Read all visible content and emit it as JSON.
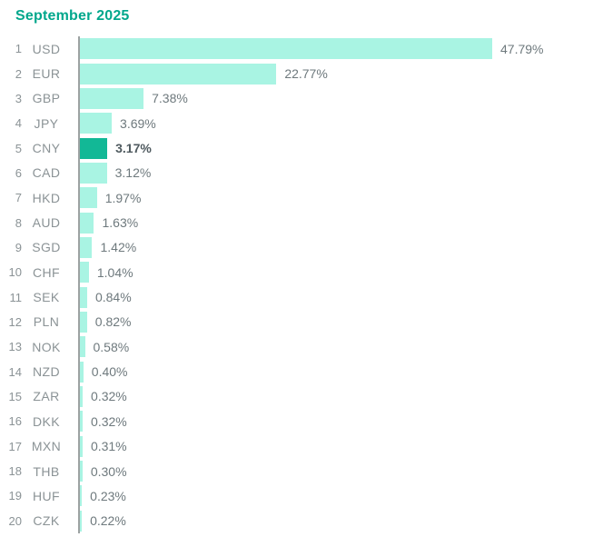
{
  "page": {
    "title": "September 2025"
  },
  "chart_data": {
    "type": "bar",
    "orientation": "horizontal",
    "title": "September 2025",
    "xlabel": "",
    "ylabel": "",
    "unit": "%",
    "xlim": [
      0,
      50
    ],
    "grid": false,
    "legend_position": "none",
    "value_labels": "outside-end",
    "highlighted_category": "CNY",
    "categories": [
      "USD",
      "EUR",
      "GBP",
      "JPY",
      "CNY",
      "CAD",
      "HKD",
      "AUD",
      "SGD",
      "CHF",
      "SEK",
      "PLN",
      "NOK",
      "NZD",
      "ZAR",
      "DKK",
      "MXN",
      "THB",
      "HUF",
      "CZK"
    ],
    "values": [
      47.79,
      22.77,
      7.38,
      3.69,
      3.17,
      3.12,
      1.97,
      1.63,
      1.42,
      1.04,
      0.84,
      0.82,
      0.58,
      0.4,
      0.32,
      0.32,
      0.31,
      0.3,
      0.23,
      0.22
    ],
    "bars": [
      {
        "rank": "1",
        "code": "USD",
        "value": 47.79,
        "label": "47.79%",
        "highlight": false
      },
      {
        "rank": "2",
        "code": "EUR",
        "value": 22.77,
        "label": "22.77%",
        "highlight": false
      },
      {
        "rank": "3",
        "code": "GBP",
        "value": 7.38,
        "label": "7.38%",
        "highlight": false
      },
      {
        "rank": "4",
        "code": "JPY",
        "value": 3.69,
        "label": "3.69%",
        "highlight": false
      },
      {
        "rank": "5",
        "code": "CNY",
        "value": 3.17,
        "label": "3.17%",
        "highlight": true
      },
      {
        "rank": "6",
        "code": "CAD",
        "value": 3.12,
        "label": "3.12%",
        "highlight": false
      },
      {
        "rank": "7",
        "code": "HKD",
        "value": 1.97,
        "label": "1.97%",
        "highlight": false
      },
      {
        "rank": "8",
        "code": "AUD",
        "value": 1.63,
        "label": "1.63%",
        "highlight": false
      },
      {
        "rank": "9",
        "code": "SGD",
        "value": 1.42,
        "label": "1.42%",
        "highlight": false
      },
      {
        "rank": "10",
        "code": "CHF",
        "value": 1.04,
        "label": "1.04%",
        "highlight": false
      },
      {
        "rank": "11",
        "code": "SEK",
        "value": 0.84,
        "label": "0.84%",
        "highlight": false
      },
      {
        "rank": "12",
        "code": "PLN",
        "value": 0.82,
        "label": "0.82%",
        "highlight": false
      },
      {
        "rank": "13",
        "code": "NOK",
        "value": 0.58,
        "label": "0.58%",
        "highlight": false
      },
      {
        "rank": "14",
        "code": "NZD",
        "value": 0.4,
        "label": "0.40%",
        "highlight": false
      },
      {
        "rank": "15",
        "code": "ZAR",
        "value": 0.32,
        "label": "0.32%",
        "highlight": false
      },
      {
        "rank": "16",
        "code": "DKK",
        "value": 0.32,
        "label": "0.32%",
        "highlight": false
      },
      {
        "rank": "17",
        "code": "MXN",
        "value": 0.31,
        "label": "0.31%",
        "highlight": false
      },
      {
        "rank": "18",
        "code": "THB",
        "value": 0.3,
        "label": "0.30%",
        "highlight": false
      },
      {
        "rank": "19",
        "code": "HUF",
        "value": 0.23,
        "label": "0.23%",
        "highlight": false
      },
      {
        "rank": "20",
        "code": "CZK",
        "value": 0.22,
        "label": "0.22%",
        "highlight": false
      }
    ],
    "colors": {
      "bar": "#a9f4e3",
      "highlight_bar": "#12b896",
      "title": "#00a78c",
      "axis_line": "#9da2a2",
      "rank_text": "#8b9396",
      "code_text": "#8b9396",
      "value_text": "#6e797d",
      "highlight_value_text": "#4f5a5f"
    }
  }
}
